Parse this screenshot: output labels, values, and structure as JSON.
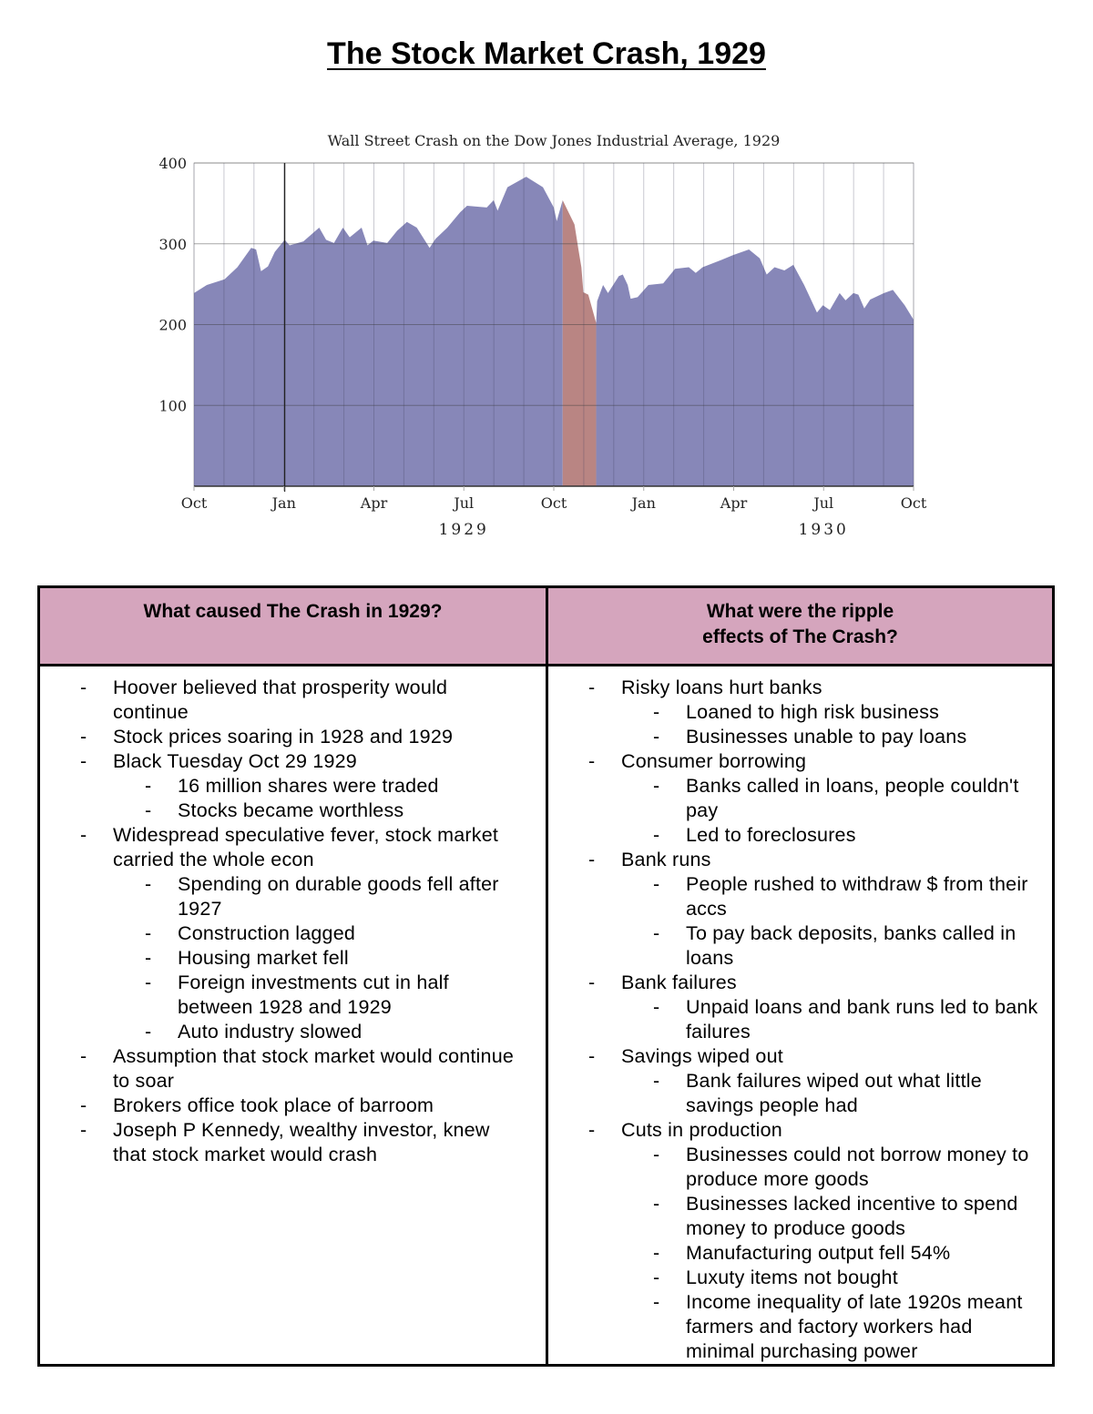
{
  "page_title": "The Stock Market Crash, 1929",
  "chart_data": {
    "type": "area",
    "title": "Wall Street Crash on the Dow Jones Industrial Average, 1929",
    "xlabel": "",
    "ylabel": "",
    "xlim": [
      "1928-10-01",
      "1930-10-01"
    ],
    "ylim": [
      0,
      400
    ],
    "yticks": [
      "100",
      "200",
      "300",
      "400"
    ],
    "xticks": [
      "Oct",
      "Jan",
      "Apr",
      "Jul",
      "Oct",
      "Jan",
      "Apr",
      "Jul",
      "Oct"
    ],
    "year_labels": [
      "1929",
      "1930"
    ],
    "grid": true,
    "colors": {
      "main": "#8787b8",
      "crash": "#b98583",
      "marker_line": "#222222"
    },
    "marker_date": "1929-01-01",
    "highlight_range": [
      "1929-10-03",
      "1929-11-13"
    ],
    "series": [
      {
        "points": [
          [
            "1928-10-01",
            239
          ],
          [
            "1928-10-14",
            249
          ],
          [
            "1928-11-01",
            256
          ],
          [
            "1928-11-14",
            271
          ],
          [
            "1928-11-28",
            295
          ],
          [
            "1928-12-03",
            293
          ],
          [
            "1928-12-08",
            266
          ],
          [
            "1928-12-15",
            272
          ],
          [
            "1928-12-22",
            290
          ],
          [
            "1929-01-01",
            305
          ],
          [
            "1929-01-06",
            298
          ],
          [
            "1929-01-20",
            303
          ],
          [
            "1929-02-05",
            320
          ],
          [
            "1929-02-12",
            305
          ],
          [
            "1929-02-20",
            301
          ],
          [
            "1929-03-01",
            320
          ],
          [
            "1929-03-08",
            308
          ],
          [
            "1929-03-20",
            320
          ],
          [
            "1929-03-26",
            298
          ],
          [
            "1929-04-01",
            304
          ],
          [
            "1929-04-15",
            301
          ],
          [
            "1929-04-25",
            316
          ],
          [
            "1929-05-05",
            327
          ],
          [
            "1929-05-15",
            320
          ],
          [
            "1929-05-28",
            295
          ],
          [
            "1929-06-03",
            306
          ],
          [
            "1929-06-15",
            320
          ],
          [
            "1929-06-28",
            339
          ],
          [
            "1929-07-05",
            347
          ],
          [
            "1929-07-25",
            345
          ],
          [
            "1929-08-01",
            354
          ],
          [
            "1929-08-05",
            341
          ],
          [
            "1929-08-15",
            370
          ],
          [
            "1929-09-03",
            383
          ],
          [
            "1929-09-20",
            370
          ],
          [
            "1929-10-01",
            345
          ],
          [
            "1929-10-04",
            328
          ],
          [
            "1929-10-10",
            354
          ],
          [
            "1929-10-22",
            324
          ],
          [
            "1929-10-26",
            293
          ],
          [
            "1929-10-29",
            271
          ],
          [
            "1929-10-31",
            240
          ],
          [
            "1929-11-05",
            237
          ],
          [
            "1929-11-13",
            202
          ],
          [
            "1929-11-14",
            229
          ],
          [
            "1929-11-20",
            249
          ],
          [
            "1929-11-25",
            239
          ],
          [
            "1929-12-06",
            260
          ],
          [
            "1929-12-10",
            262
          ],
          [
            "1929-12-15",
            249
          ],
          [
            "1929-12-18",
            232
          ],
          [
            "1929-12-25",
            234
          ],
          [
            "1930-01-05",
            249
          ],
          [
            "1930-01-20",
            251
          ],
          [
            "1930-02-01",
            269
          ],
          [
            "1930-02-15",
            271
          ],
          [
            "1930-02-22",
            264
          ],
          [
            "1930-03-01",
            271
          ],
          [
            "1930-03-20",
            280
          ],
          [
            "1930-04-01",
            286
          ],
          [
            "1930-04-17",
            293
          ],
          [
            "1930-04-28",
            282
          ],
          [
            "1930-05-05",
            262
          ],
          [
            "1930-05-13",
            271
          ],
          [
            "1930-05-23",
            267
          ],
          [
            "1930-06-01",
            274
          ],
          [
            "1930-06-12",
            249
          ],
          [
            "1930-06-25",
            215
          ],
          [
            "1930-07-01",
            224
          ],
          [
            "1930-07-08",
            218
          ],
          [
            "1930-07-18",
            239
          ],
          [
            "1930-07-24",
            230
          ],
          [
            "1930-08-01",
            239
          ],
          [
            "1930-08-06",
            237
          ],
          [
            "1930-08-12",
            220
          ],
          [
            "1930-08-18",
            231
          ],
          [
            "1930-09-01",
            239
          ],
          [
            "1930-09-10",
            243
          ],
          [
            "1930-09-22",
            224
          ],
          [
            "1930-10-01",
            206
          ]
        ]
      }
    ]
  },
  "table": {
    "headers": [
      "What caused The Crash in 1929?",
      "What were the ripple effects of The Crash?"
    ],
    "bullet": "-",
    "left": [
      {
        "text": "Hoover believed that prosperity would continue",
        "children": []
      },
      {
        "text": "Stock prices soaring in 1928 and 1929",
        "children": []
      },
      {
        "text": "Black Tuesday Oct 29 1929",
        "children": [
          "16 million shares were traded",
          "Stocks became worthless"
        ]
      },
      {
        "text": "Widespread speculative fever, stock market carried the whole econ",
        "children": [
          "Spending on durable goods fell after 1927",
          "Construction lagged",
          "Housing market fell",
          "Foreign investments cut in half between 1928 and 1929",
          "Auto industry slowed"
        ]
      },
      {
        "text": "Assumption that stock market would continue to soar",
        "children": []
      },
      {
        "text": "Brokers office took place of barroom",
        "children": []
      },
      {
        "text": "Joseph P Kennedy, wealthy investor, knew that stock market would crash",
        "children": []
      }
    ],
    "right": [
      {
        "text": "Risky loans hurt banks",
        "children": [
          "Loaned to high risk business",
          "Businesses unable to pay loans"
        ]
      },
      {
        "text": "Consumer borrowing",
        "children": [
          "Banks called in loans, people couldn't pay",
          "Led to foreclosures"
        ]
      },
      {
        "text": "Bank runs",
        "children": [
          "People rushed to withdraw $ from their accs",
          "To pay back deposits, banks called in loans"
        ]
      },
      {
        "text": "Bank failures",
        "children": [
          "Unpaid loans and bank runs led to bank failures"
        ]
      },
      {
        "text": "Savings wiped out",
        "children": [
          "Bank failures wiped out what little savings people had"
        ]
      },
      {
        "text": "Cuts in production",
        "children": [
          "Businesses could not borrow money to produce more goods",
          "Businesses lacked incentive to spend money to produce goods",
          "Manufacturing output fell 54%",
          "Luxuty items not bought",
          "Income inequality of late 1920s meant farmers and factory workers had minimal purchasing power"
        ]
      }
    ]
  }
}
